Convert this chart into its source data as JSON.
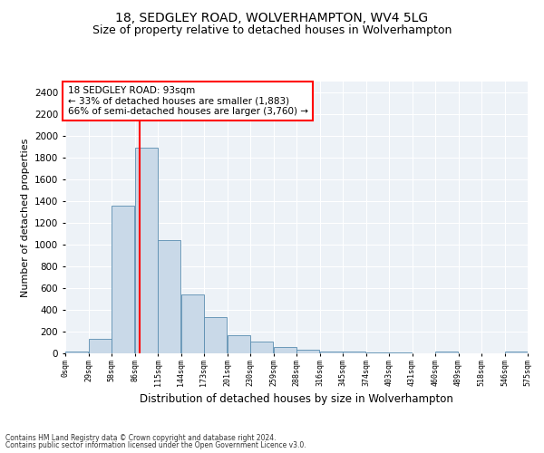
{
  "title": "18, SEDGLEY ROAD, WOLVERHAMPTON, WV4 5LG",
  "subtitle": "Size of property relative to detached houses in Wolverhampton",
  "xlabel": "Distribution of detached houses by size in Wolverhampton",
  "ylabel": "Number of detached properties",
  "footer_line1": "Contains HM Land Registry data © Crown copyright and database right 2024.",
  "footer_line2": "Contains public sector information licensed under the Open Government Licence v3.0.",
  "annotation_line1": "18 SEDGLEY ROAD: 93sqm",
  "annotation_line2": "← 33% of detached houses are smaller (1,883)",
  "annotation_line3": "66% of semi-detached houses are larger (3,760) →",
  "bar_color": "#c9d9e8",
  "bar_edge_color": "#5a8db0",
  "red_line_x": 93,
  "bin_edges": [
    0,
    29,
    58,
    87,
    116,
    145,
    174,
    203,
    232,
    261,
    290,
    319,
    348,
    377,
    406,
    435,
    464,
    493,
    522,
    551,
    580
  ],
  "bin_labels": [
    "0sqm",
    "29sqm",
    "58sqm",
    "86sqm",
    "115sqm",
    "144sqm",
    "173sqm",
    "201sqm",
    "230sqm",
    "259sqm",
    "288sqm",
    "316sqm",
    "345sqm",
    "374sqm",
    "403sqm",
    "431sqm",
    "460sqm",
    "489sqm",
    "518sqm",
    "546sqm",
    "575sqm"
  ],
  "bar_heights": [
    15,
    135,
    1355,
    1890,
    1040,
    540,
    335,
    170,
    110,
    55,
    35,
    20,
    15,
    5,
    5,
    0,
    20,
    0,
    0,
    15
  ],
  "ylim": [
    0,
    2500
  ],
  "yticks": [
    0,
    200,
    400,
    600,
    800,
    1000,
    1200,
    1400,
    1600,
    1800,
    2000,
    2200,
    2400
  ],
  "background_color": "#edf2f7",
  "title_fontsize": 10,
  "subtitle_fontsize": 9,
  "ylabel_fontsize": 8,
  "xlabel_fontsize": 8.5,
  "annotation_fontsize": 7.5,
  "annotation_box_color": "white",
  "annotation_box_edge": "red",
  "footer_fontsize": 5.5
}
